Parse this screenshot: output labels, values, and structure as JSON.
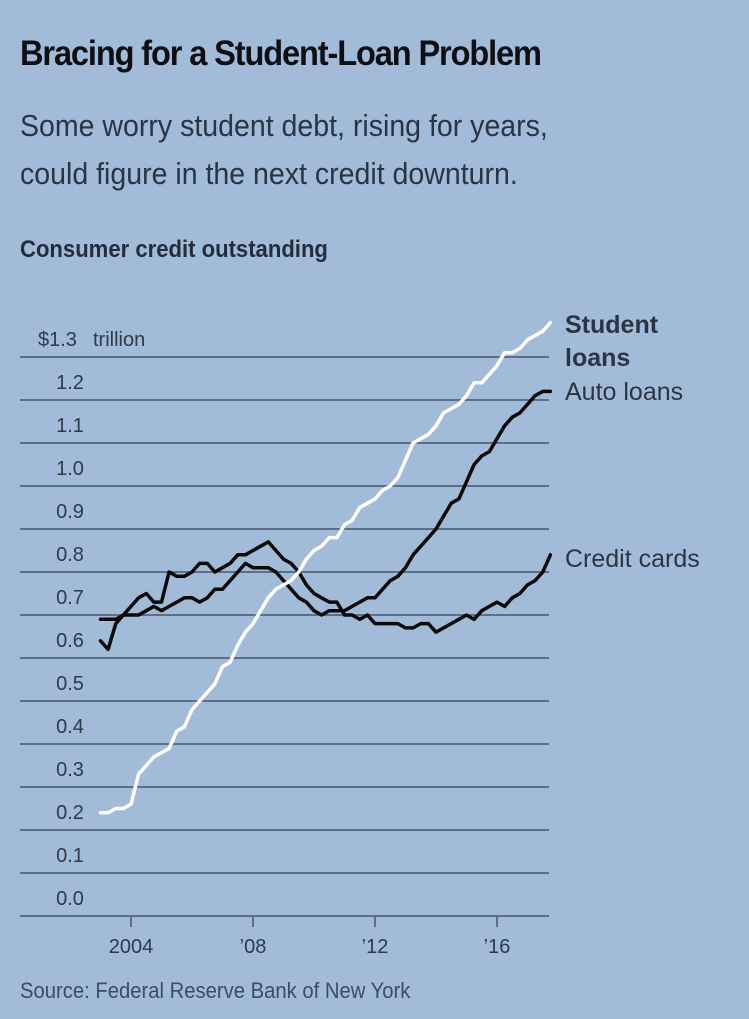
{
  "header": {
    "title": "Bracing for a Student-Loan Problem",
    "subtitle_line1": "Some worry student debt, rising for years,",
    "subtitle_line2": "could figure in the next credit downturn.",
    "chart_label": "Consumer credit outstanding"
  },
  "footer": {
    "source": "Source: Federal Reserve Bank of New York"
  },
  "colors": {
    "background": "#a2bbd9",
    "gridline": "#5c6f88",
    "student_loans": "#ffffff",
    "auto_loans": "#0a0a0a",
    "credit_cards": "#0a0a0a"
  },
  "chart_data": {
    "type": "line",
    "title": "Consumer credit outstanding",
    "xlabel": "",
    "ylabel": "$ trillion",
    "unit_label": "trillion",
    "ylim": [
      0.0,
      1.3
    ],
    "xlim": [
      2003.0,
      2017.75
    ],
    "grid": true,
    "y_ticks": [
      0.0,
      0.1,
      0.2,
      0.3,
      0.4,
      0.5,
      0.6,
      0.7,
      0.8,
      0.9,
      1.0,
      1.1,
      1.2,
      1.3
    ],
    "y_tick_labels": [
      "0.0",
      "0.1",
      "0.2",
      "0.3",
      "0.4",
      "0.5",
      "0.6",
      "0.7",
      "0.8",
      "0.9",
      "1.0",
      "1.1",
      "1.2",
      "$1.3"
    ],
    "x_ticks": [
      2004,
      2008,
      2012,
      2016
    ],
    "x_tick_labels": [
      "2004",
      "’08",
      "’12",
      "’16"
    ],
    "legend_placement": "right-end-labels",
    "x": [
      2003.0,
      2003.25,
      2003.5,
      2003.75,
      2004.0,
      2004.25,
      2004.5,
      2004.75,
      2005.0,
      2005.25,
      2005.5,
      2005.75,
      2006.0,
      2006.25,
      2006.5,
      2006.75,
      2007.0,
      2007.25,
      2007.5,
      2007.75,
      2008.0,
      2008.25,
      2008.5,
      2008.75,
      2009.0,
      2009.25,
      2009.5,
      2009.75,
      2010.0,
      2010.25,
      2010.5,
      2010.75,
      2011.0,
      2011.25,
      2011.5,
      2011.75,
      2012.0,
      2012.25,
      2012.5,
      2012.75,
      2013.0,
      2013.25,
      2013.5,
      2013.75,
      2014.0,
      2014.25,
      2014.5,
      2014.75,
      2015.0,
      2015.25,
      2015.5,
      2015.75,
      2016.0,
      2016.25,
      2016.5,
      2016.75,
      2017.0,
      2017.25,
      2017.5,
      2017.75
    ],
    "series": [
      {
        "name": "Student loans",
        "label_line1": "Student",
        "label_line2": "loans",
        "values": [
          0.24,
          0.24,
          0.25,
          0.25,
          0.26,
          0.33,
          0.35,
          0.37,
          0.38,
          0.39,
          0.43,
          0.44,
          0.48,
          0.5,
          0.52,
          0.54,
          0.58,
          0.59,
          0.63,
          0.66,
          0.68,
          0.71,
          0.74,
          0.76,
          0.77,
          0.78,
          0.8,
          0.83,
          0.85,
          0.86,
          0.88,
          0.88,
          0.91,
          0.92,
          0.95,
          0.96,
          0.97,
          0.99,
          1.0,
          1.02,
          1.06,
          1.1,
          1.11,
          1.12,
          1.14,
          1.17,
          1.18,
          1.19,
          1.21,
          1.24,
          1.24,
          1.26,
          1.28,
          1.31,
          1.31,
          1.32,
          1.34,
          1.35,
          1.36,
          1.38
        ]
      },
      {
        "name": "Auto loans",
        "label_line1": "Auto loans",
        "values": [
          0.69,
          0.69,
          0.69,
          0.7,
          0.7,
          0.7,
          0.71,
          0.72,
          0.71,
          0.72,
          0.73,
          0.74,
          0.74,
          0.73,
          0.74,
          0.76,
          0.76,
          0.78,
          0.8,
          0.82,
          0.81,
          0.81,
          0.81,
          0.8,
          0.78,
          0.76,
          0.74,
          0.73,
          0.71,
          0.7,
          0.71,
          0.71,
          0.71,
          0.72,
          0.73,
          0.74,
          0.74,
          0.76,
          0.78,
          0.79,
          0.81,
          0.84,
          0.86,
          0.88,
          0.9,
          0.93,
          0.96,
          0.97,
          1.01,
          1.05,
          1.07,
          1.08,
          1.11,
          1.14,
          1.16,
          1.17,
          1.19,
          1.21,
          1.22,
          1.22
        ]
      },
      {
        "name": "Credit cards",
        "label_line1": "Credit cards",
        "values": [
          0.64,
          0.62,
          0.68,
          0.7,
          0.72,
          0.74,
          0.75,
          0.73,
          0.73,
          0.8,
          0.79,
          0.79,
          0.8,
          0.82,
          0.82,
          0.8,
          0.81,
          0.82,
          0.84,
          0.84,
          0.85,
          0.86,
          0.87,
          0.85,
          0.83,
          0.82,
          0.8,
          0.77,
          0.75,
          0.74,
          0.73,
          0.73,
          0.7,
          0.7,
          0.69,
          0.7,
          0.68,
          0.68,
          0.68,
          0.68,
          0.67,
          0.67,
          0.68,
          0.68,
          0.66,
          0.67,
          0.68,
          0.69,
          0.7,
          0.69,
          0.71,
          0.72,
          0.73,
          0.72,
          0.74,
          0.75,
          0.77,
          0.78,
          0.8,
          0.84
        ]
      }
    ]
  }
}
